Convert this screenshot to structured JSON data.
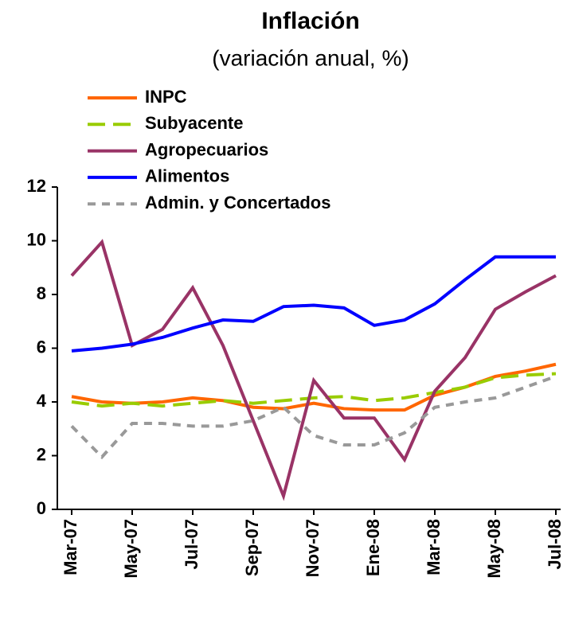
{
  "chart_data": {
    "type": "line",
    "title": "Inflación",
    "subtitle": "(variación anual, %)",
    "categories": [
      "Mar-07",
      null,
      "May-07",
      null,
      "Jul-07",
      null,
      "Sep-07",
      null,
      "Nov-07",
      null,
      "Ene-08",
      null,
      "Mar-08",
      null,
      "May-08",
      null,
      "Jul-08"
    ],
    "series": [
      {
        "name": "INPC",
        "color": "#ff6600",
        "dash": "solid",
        "values": [
          4.2,
          4.0,
          3.95,
          4.0,
          4.15,
          4.05,
          3.8,
          3.75,
          3.95,
          3.75,
          3.7,
          3.7,
          4.25,
          4.55,
          4.95,
          5.15,
          5.4
        ]
      },
      {
        "name": "Subyacente",
        "color": "#99cc00",
        "dash": "long",
        "values": [
          4.0,
          3.85,
          3.95,
          3.85,
          3.95,
          4.05,
          3.95,
          4.05,
          4.15,
          4.2,
          4.05,
          4.15,
          4.35,
          4.55,
          4.9,
          5.0,
          5.05
        ]
      },
      {
        "name": "Agropecuarios",
        "color": "#993366",
        "dash": "solid",
        "values": [
          8.7,
          9.95,
          6.1,
          6.7,
          8.25,
          6.1,
          3.3,
          0.5,
          4.8,
          3.4,
          3.4,
          1.85,
          4.4,
          5.65,
          7.45,
          8.1,
          8.7
        ]
      },
      {
        "name": "Alimentos",
        "color": "#0000ff",
        "dash": "solid",
        "values": [
          5.9,
          6.0,
          6.15,
          6.4,
          6.75,
          7.05,
          7.0,
          7.55,
          7.6,
          7.5,
          6.85,
          7.05,
          7.65,
          8.55,
          9.4,
          9.4,
          9.4
        ]
      },
      {
        "name": "Admin. y Concertados",
        "color": "#999999",
        "dash": "short",
        "values": [
          3.1,
          1.95,
          3.2,
          3.2,
          3.1,
          3.1,
          3.3,
          3.8,
          2.75,
          2.4,
          2.4,
          2.85,
          3.8,
          4.0,
          4.15,
          4.55,
          4.95
        ]
      }
    ],
    "ylim": [
      0,
      12
    ],
    "yticks": [
      0,
      2,
      4,
      6,
      8,
      10,
      12
    ],
    "grid": false,
    "legend": "top"
  }
}
